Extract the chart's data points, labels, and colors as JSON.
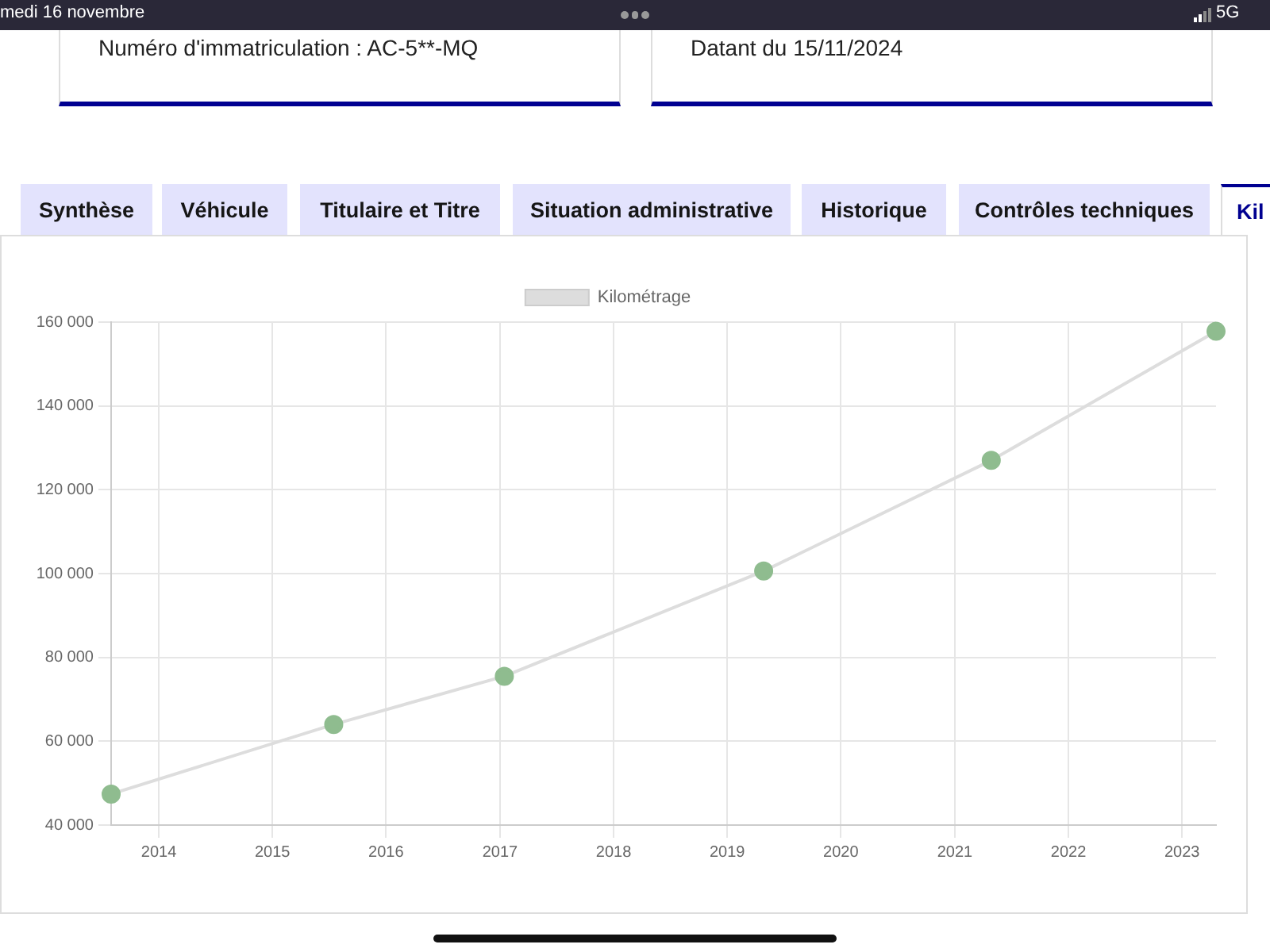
{
  "chart_data": {
    "type": "line",
    "x": [
      "2013-08-01",
      "2015-07-17",
      "2017-01-15",
      "2019-04-28",
      "2021-04-28",
      "2023-04-20"
    ],
    "series": [
      {
        "name": "Kilométrage",
        "color": "#dddddd",
        "colors": [
          "#8fbc8f",
          "#8fbc8f",
          "#8fbc8f",
          "#8fbc8f",
          "#8fbc8f",
          "#8fbc8f"
        ],
        "values": [
          47400,
          64000,
          75500,
          100600,
          127000,
          157800
        ]
      }
    ],
    "xlim": [
      "2013-08-01",
      "2023-04-20"
    ],
    "xticks": [
      {
        "value": "2014",
        "label": "2014"
      },
      {
        "value": "2015",
        "label": "2015"
      },
      {
        "value": "2016",
        "label": "2016"
      },
      {
        "value": "2017",
        "label": "2017"
      },
      {
        "value": "2018",
        "label": "2018"
      },
      {
        "value": "2019",
        "label": "2019"
      },
      {
        "value": "2020",
        "label": "2020"
      },
      {
        "value": "2021",
        "label": "2021"
      },
      {
        "value": "2022",
        "label": "2022"
      },
      {
        "value": "2023",
        "label": "2023"
      }
    ],
    "ylim": [
      40000,
      160000
    ],
    "yticks": [
      {
        "value": 40000,
        "label": "40 000"
      },
      {
        "value": 60000,
        "label": "60 000"
      },
      {
        "value": 80000,
        "label": "80 000"
      },
      {
        "value": 100000,
        "label": "100 000"
      },
      {
        "value": 120000,
        "label": "120 000"
      },
      {
        "value": 140000,
        "label": "140 000"
      },
      {
        "value": 160000,
        "label": "160 000"
      }
    ],
    "grid": true,
    "legend": "top",
    "marker": "circle",
    "line_style": "solid",
    "annotations": [
      "medi 16 novembre",
      "5G",
      "Numéro d'immatriculation : AC-5**-MQ",
      "Datant du 15/11/2024",
      "Synthèse",
      "Véhicule",
      "Titulaire et Titre",
      "Situation administrative",
      "Historique",
      "Contrôles techniques",
      "Kil"
    ]
  }
}
